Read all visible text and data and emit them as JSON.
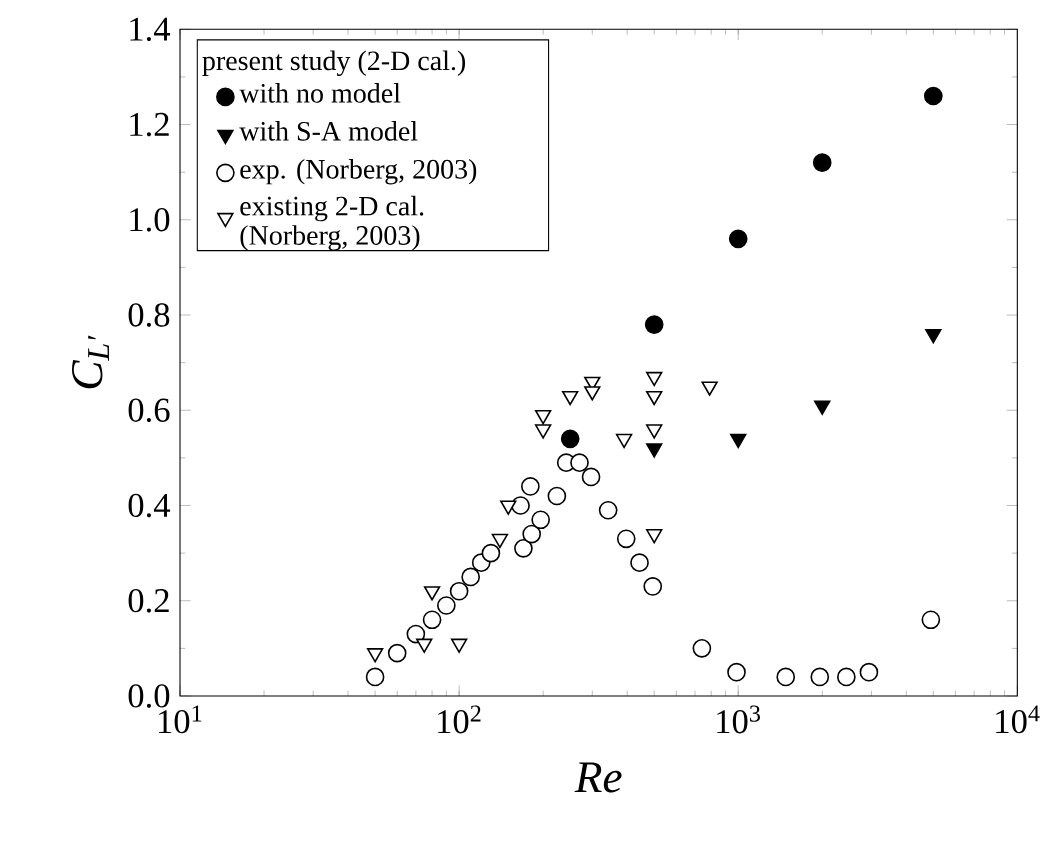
{
  "chart_data": {
    "type": "scatter",
    "xlabel": "Re",
    "ylabel": "C$_{L′}$",
    "legend_title": "present study (2-D cal.)",
    "log": "x",
    "xlim": [
      10,
      10000
    ],
    "xticks": [
      {
        "value": 10,
        "label": "10$^{1}$"
      },
      {
        "value": 100,
        "label": "10$^{2}$"
      },
      {
        "value": 1000,
        "label": "10$^{3}$"
      },
      {
        "value": 10000,
        "label": "10$^{4}$"
      }
    ],
    "ylim": [
      0,
      1.4
    ],
    "yticks": [
      {
        "value": 0,
        "label": "0.0"
      },
      {
        "value": 0.2,
        "label": "0.2"
      },
      {
        "value": 0.4,
        "label": "0.4"
      },
      {
        "value": 0.6,
        "label": "0.6"
      },
      {
        "value": 0.8,
        "label": "0.8"
      },
      {
        "value": 1.0,
        "label": "1.0"
      },
      {
        "value": 1.2,
        "label": "1.2"
      },
      {
        "value": 1.4,
        "label": "1.4"
      }
    ],
    "legend": "top left",
    "grid": false,
    "series": [
      {
        "name": "with no model",
        "color": "#000000",
        "marker": "circle",
        "x": [
          250,
          500,
          1000,
          2000,
          5000
        ],
        "values": [
          0.54,
          0.78,
          0.96,
          1.12,
          1.26
        ]
      },
      {
        "name": "with S-A model",
        "color": "#000000",
        "marker": "triangle",
        "x": [
          500,
          1000,
          2000,
          5000
        ],
        "values": [
          0.52,
          0.54,
          0.61,
          0.76
        ]
      },
      {
        "name": "exp. (Norberg, 2003)",
        "color": "#ffffff",
        "marker": "circle",
        "x": [
          50,
          60,
          70,
          80,
          90,
          100,
          110,
          120,
          130,
          170,
          182,
          196,
          166,
          180,
          224,
          242,
          270,
          297,
          342,
          397,
          443,
          494,
          741,
          986,
          1480,
          1960,
          2440,
          2940,
          4900
        ],
        "values": [
          0.04,
          0.09,
          0.13,
          0.16,
          0.19,
          0.22,
          0.25,
          0.28,
          0.3,
          0.31,
          0.34,
          0.37,
          0.4,
          0.44,
          0.42,
          0.49,
          0.49,
          0.46,
          0.39,
          0.33,
          0.28,
          0.23,
          0.1,
          0.05,
          0.04,
          0.04,
          0.04,
          0.05,
          0.16
        ]
      },
      {
        "name": "existing 2-D cal. (Norberg, 2003)",
        "color": "#ffffff",
        "marker": "triangle",
        "x": [
          50,
          75,
          80,
          100,
          140,
          150,
          200,
          200,
          250,
          300,
          300,
          390,
          500,
          500,
          500,
          500,
          790
        ],
        "values": [
          0.09,
          0.11,
          0.22,
          0.11,
          0.33,
          0.4,
          0.59,
          0.56,
          0.63,
          0.66,
          0.64,
          0.54,
          0.67,
          0.63,
          0.56,
          0.34,
          0.65
        ]
      }
    ]
  }
}
